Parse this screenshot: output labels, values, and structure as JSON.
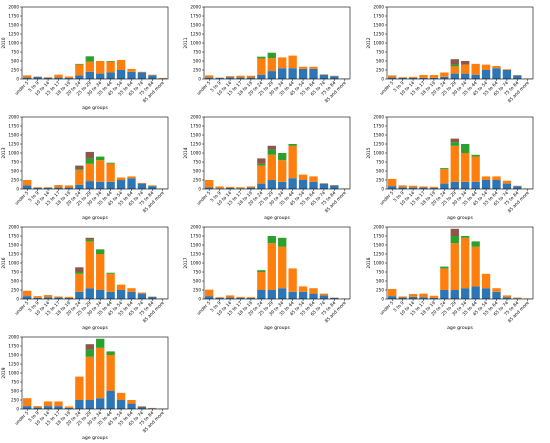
{
  "colors": {
    "s1": "#2e75b6",
    "s2": "#ff7f0e",
    "s3": "#2ca02c",
    "s4": "#8c564b"
  },
  "chart_data": [
    {
      "type": "bar",
      "stacked": true,
      "title": "",
      "xlabel": "age groups",
      "ylabel": "2010",
      "ylim": [
        0,
        2000
      ],
      "yticks": [
        0,
        250,
        500,
        750,
        1000,
        1250,
        1500,
        1750,
        2000
      ],
      "categories": [
        "under 5",
        "5 to 9",
        "10 to 14",
        "15 to 17",
        "18 to 19",
        "20 to 24",
        "25 to 29",
        "30 to 34",
        "35 to 44",
        "45 to 54",
        "55 to 64",
        "65 to 74",
        "75 to 84",
        "85 and more"
      ],
      "series": [
        {
          "values": [
            40,
            60,
            30,
            40,
            30,
            100,
            200,
            150,
            180,
            250,
            200,
            180,
            100,
            20
          ]
        },
        {
          "values": [
            60,
            10,
            20,
            80,
            40,
            300,
            280,
            350,
            300,
            280,
            80,
            20,
            20,
            10
          ]
        },
        {
          "values": [
            0,
            0,
            0,
            0,
            0,
            20,
            150,
            0,
            20,
            0,
            0,
            0,
            0,
            0
          ]
        },
        {
          "values": [
            0,
            0,
            0,
            0,
            0,
            0,
            0,
            0,
            0,
            0,
            0,
            0,
            0,
            0
          ]
        }
      ]
    },
    {
      "type": "bar",
      "stacked": true,
      "title": "",
      "xlabel": "",
      "ylabel": "2011",
      "ylim": [
        0,
        2000
      ],
      "yticks": [
        0,
        250,
        500,
        750,
        1000,
        1250,
        1500,
        1750,
        2000
      ],
      "categories": [
        "under 5",
        "5 to 9",
        "10 to 14",
        "15 to 17",
        "18 to 19",
        "20 to 24",
        "25 to 29",
        "30 to 34",
        "35 to 44",
        "45 to 54",
        "55 to 64",
        "65 to 74",
        "75 to 84",
        "85 and more"
      ],
      "series": [
        {
          "values": [
            40,
            30,
            50,
            40,
            40,
            120,
            220,
            300,
            300,
            280,
            280,
            120,
            80,
            10
          ]
        },
        {
          "values": [
            60,
            10,
            30,
            50,
            50,
            450,
            360,
            300,
            350,
            60,
            60,
            10,
            10,
            5
          ]
        },
        {
          "values": [
            0,
            0,
            0,
            0,
            0,
            50,
            150,
            0,
            0,
            0,
            0,
            0,
            0,
            0
          ]
        },
        {
          "values": [
            0,
            0,
            0,
            0,
            0,
            0,
            0,
            0,
            0,
            0,
            0,
            0,
            0,
            0
          ]
        }
      ]
    },
    {
      "type": "bar",
      "stacked": true,
      "title": "",
      "xlabel": "",
      "ylabel": "2012",
      "ylim": [
        0,
        2000
      ],
      "yticks": [
        0,
        250,
        500,
        750,
        1000,
        1250,
        1500,
        1750,
        2000
      ],
      "categories": [
        "under 5",
        "5 to 9",
        "10 to 14",
        "15 to 17",
        "18 to 19",
        "20 to 24",
        "25 to 29",
        "30 to 34",
        "35 to 44",
        "45 to 54",
        "55 to 64",
        "65 to 74",
        "75 to 84",
        "85 and more"
      ],
      "series": [
        {
          "values": [
            40,
            30,
            30,
            30,
            30,
            60,
            150,
            150,
            120,
            250,
            300,
            250,
            100,
            10
          ]
        },
        {
          "values": [
            60,
            20,
            30,
            80,
            80,
            120,
            200,
            250,
            300,
            150,
            60,
            20,
            10,
            5
          ]
        },
        {
          "values": [
            0,
            0,
            0,
            0,
            0,
            0,
            50,
            0,
            0,
            0,
            0,
            0,
            0,
            0
          ]
        },
        {
          "values": [
            0,
            0,
            0,
            0,
            0,
            0,
            150,
            100,
            0,
            0,
            0,
            0,
            0,
            0
          ]
        }
      ]
    },
    {
      "type": "bar",
      "stacked": true,
      "title": "",
      "xlabel": "age groups",
      "ylabel": "2013",
      "ylim": [
        0,
        2000
      ],
      "yticks": [
        0,
        250,
        500,
        750,
        1000,
        1250,
        1500,
        1750,
        2000
      ],
      "categories": [
        "under 5",
        "5 to 9",
        "10 to 14",
        "15 to 17",
        "18 to 19",
        "20 to 24",
        "25 to 29",
        "30 to 34",
        "35 to 44",
        "45 to 54",
        "55 to 64",
        "65 to 74",
        "75 to 84",
        "85 and more"
      ],
      "series": [
        {
          "values": [
            100,
            30,
            30,
            40,
            40,
            120,
            220,
            200,
            200,
            250,
            300,
            150,
            80,
            10
          ]
        },
        {
          "values": [
            150,
            20,
            20,
            70,
            60,
            400,
            480,
            600,
            500,
            70,
            50,
            20,
            20,
            5
          ]
        },
        {
          "values": [
            0,
            0,
            0,
            0,
            0,
            30,
            150,
            100,
            30,
            0,
            0,
            0,
            0,
            0
          ]
        },
        {
          "values": [
            0,
            0,
            0,
            0,
            0,
            100,
            180,
            0,
            0,
            0,
            0,
            0,
            0,
            0
          ]
        }
      ]
    },
    {
      "type": "bar",
      "stacked": true,
      "title": "",
      "xlabel": "age groups",
      "ylabel": "2014",
      "ylim": [
        0,
        2000
      ],
      "yticks": [
        0,
        250,
        500,
        750,
        1000,
        1250,
        1500,
        1750,
        2000
      ],
      "categories": [
        "under 5",
        "5 to 9",
        "10 to 14",
        "15 to 17",
        "18 to 19",
        "20 to 24",
        "25 to 29",
        "30 to 34",
        "35 to 44",
        "45 to 54",
        "55 to 64",
        "65 to 74",
        "75 to 84",
        "85 and more"
      ],
      "series": [
        {
          "values": [
            50,
            20,
            30,
            20,
            40,
            150,
            250,
            200,
            300,
            250,
            200,
            150,
            100,
            10
          ]
        },
        {
          "values": [
            200,
            50,
            30,
            30,
            30,
            500,
            700,
            600,
            900,
            150,
            150,
            10,
            10,
            5
          ]
        },
        {
          "values": [
            0,
            0,
            0,
            0,
            0,
            50,
            150,
            200,
            50,
            0,
            0,
            0,
            0,
            0
          ]
        },
        {
          "values": [
            0,
            0,
            0,
            0,
            0,
            150,
            100,
            0,
            0,
            0,
            0,
            0,
            0,
            0
          ]
        }
      ]
    },
    {
      "type": "bar",
      "stacked": true,
      "title": "",
      "xlabel": "age groups",
      "ylabel": "2015",
      "ylim": [
        0,
        2000
      ],
      "yticks": [
        0,
        250,
        500,
        750,
        1000,
        1250,
        1500,
        1750,
        2000
      ],
      "categories": [
        "under 5",
        "5 to 9",
        "10 to 14",
        "15 to 17",
        "18 to 19",
        "20 to 24",
        "25 to 29",
        "30 to 34",
        "35 to 44",
        "45 to 54",
        "55 to 64",
        "65 to 74",
        "75 to 84",
        "85 and more"
      ],
      "series": [
        {
          "values": [
            80,
            50,
            40,
            40,
            30,
            150,
            200,
            200,
            200,
            250,
            250,
            150,
            80,
            10
          ]
        },
        {
          "values": [
            200,
            50,
            50,
            30,
            30,
            400,
            1000,
            800,
            700,
            100,
            100,
            80,
            10,
            5
          ]
        },
        {
          "values": [
            0,
            0,
            0,
            0,
            0,
            30,
            100,
            250,
            50,
            0,
            0,
            0,
            0,
            0
          ]
        },
        {
          "values": [
            0,
            0,
            0,
            0,
            0,
            0,
            100,
            0,
            0,
            0,
            0,
            0,
            0,
            0
          ]
        }
      ]
    },
    {
      "type": "bar",
      "stacked": true,
      "title": "",
      "xlabel": "age groups",
      "ylabel": "2016",
      "ylim": [
        0,
        2000
      ],
      "yticks": [
        0,
        250,
        500,
        750,
        1000,
        1250,
        1500,
        1750,
        2000
      ],
      "categories": [
        "under 5",
        "5 to 9",
        "10 to 14",
        "15 to 17",
        "18 to 19",
        "20 to 24",
        "25 to 29",
        "30 to 34",
        "35 to 44",
        "45 to 54",
        "55 to 64",
        "65 to 74",
        "75 to 84",
        "85 and more"
      ],
      "series": [
        {
          "values": [
            80,
            30,
            50,
            40,
            30,
            200,
            300,
            250,
            200,
            250,
            200,
            150,
            60,
            10
          ]
        },
        {
          "values": [
            150,
            50,
            60,
            30,
            30,
            500,
            1300,
            1000,
            500,
            150,
            100,
            30,
            10,
            5
          ]
        },
        {
          "values": [
            0,
            0,
            0,
            0,
            0,
            50,
            50,
            130,
            30,
            0,
            0,
            0,
            0,
            0
          ]
        },
        {
          "values": [
            0,
            0,
            0,
            0,
            0,
            130,
            50,
            0,
            0,
            0,
            0,
            0,
            0,
            0
          ]
        }
      ]
    },
    {
      "type": "bar",
      "stacked": true,
      "title": "",
      "xlabel": "age groups",
      "ylabel": "2017",
      "ylim": [
        0,
        2000
      ],
      "yticks": [
        0,
        250,
        500,
        750,
        1000,
        1250,
        1500,
        1750,
        2000
      ],
      "categories": [
        "under 5",
        "5 to 9",
        "10 to 14",
        "15 to 17",
        "18 to 19",
        "20 to 24",
        "25 to 29",
        "30 to 34",
        "35 to 44",
        "45 to 54",
        "55 to 64",
        "65 to 74",
        "75 to 84",
        "85 and more"
      ],
      "series": [
        {
          "values": [
            80,
            30,
            40,
            30,
            30,
            250,
            250,
            300,
            200,
            200,
            150,
            100,
            30,
            10
          ]
        },
        {
          "values": [
            180,
            20,
            60,
            30,
            20,
            500,
            1300,
            1150,
            650,
            150,
            150,
            50,
            10,
            5
          ]
        },
        {
          "values": [
            0,
            0,
            0,
            0,
            0,
            50,
            200,
            250,
            0,
            0,
            0,
            0,
            0,
            0
          ]
        },
        {
          "values": [
            0,
            0,
            0,
            0,
            0,
            0,
            0,
            0,
            0,
            0,
            0,
            0,
            0,
            0
          ]
        }
      ]
    },
    {
      "type": "bar",
      "stacked": true,
      "title": "",
      "xlabel": "age groups",
      "ylabel": "2018",
      "ylim": [
        0,
        2000
      ],
      "yticks": [
        0,
        250,
        500,
        750,
        1000,
        1250,
        1500,
        1750,
        2000
      ],
      "categories": [
        "under 5",
        "5 to 9",
        "10 to 14",
        "15 to 17",
        "18 to 19",
        "20 to 24",
        "25 to 29",
        "30 to 34",
        "35 to 44",
        "45 to 54",
        "55 to 64",
        "65 to 74",
        "75 to 84",
        "85 and more"
      ],
      "series": [
        {
          "values": [
            80,
            40,
            60,
            50,
            30,
            250,
            250,
            300,
            350,
            300,
            200,
            50,
            20,
            10
          ]
        },
        {
          "values": [
            200,
            30,
            80,
            100,
            60,
            600,
            1300,
            1400,
            1100,
            400,
            100,
            50,
            20,
            5
          ]
        },
        {
          "values": [
            0,
            0,
            0,
            0,
            0,
            50,
            200,
            50,
            150,
            0,
            0,
            0,
            0,
            0
          ]
        },
        {
          "values": [
            0,
            0,
            0,
            0,
            0,
            0,
            200,
            0,
            0,
            0,
            0,
            0,
            0,
            0
          ]
        }
      ]
    },
    {
      "type": "bar",
      "stacked": true,
      "title": "",
      "xlabel": "age groups",
      "ylabel": "2019",
      "ylim": [
        0,
        2000
      ],
      "yticks": [
        0,
        250,
        500,
        750,
        1000,
        1250,
        1500,
        1750,
        2000
      ],
      "categories": [
        "under 5",
        "5 to 9",
        "10 to 14",
        "15 to 17",
        "18 to 19",
        "20 to 24",
        "25 to 29",
        "30 to 34",
        "35 to 44",
        "45 to 54",
        "55 to 64",
        "65 to 74",
        "75 to 84",
        "85 and more"
      ],
      "series": [
        {
          "values": [
            80,
            40,
            80,
            80,
            30,
            250,
            250,
            300,
            500,
            250,
            150,
            60,
            20,
            10
          ]
        },
        {
          "values": [
            220,
            40,
            130,
            130,
            40,
            650,
            1200,
            1400,
            1000,
            200,
            100,
            20,
            10,
            5
          ]
        },
        {
          "values": [
            0,
            0,
            0,
            0,
            0,
            0,
            200,
            250,
            100,
            0,
            0,
            0,
            0,
            0
          ]
        },
        {
          "values": [
            0,
            0,
            0,
            0,
            0,
            0,
            150,
            0,
            0,
            0,
            0,
            0,
            0,
            0
          ]
        }
      ]
    }
  ]
}
